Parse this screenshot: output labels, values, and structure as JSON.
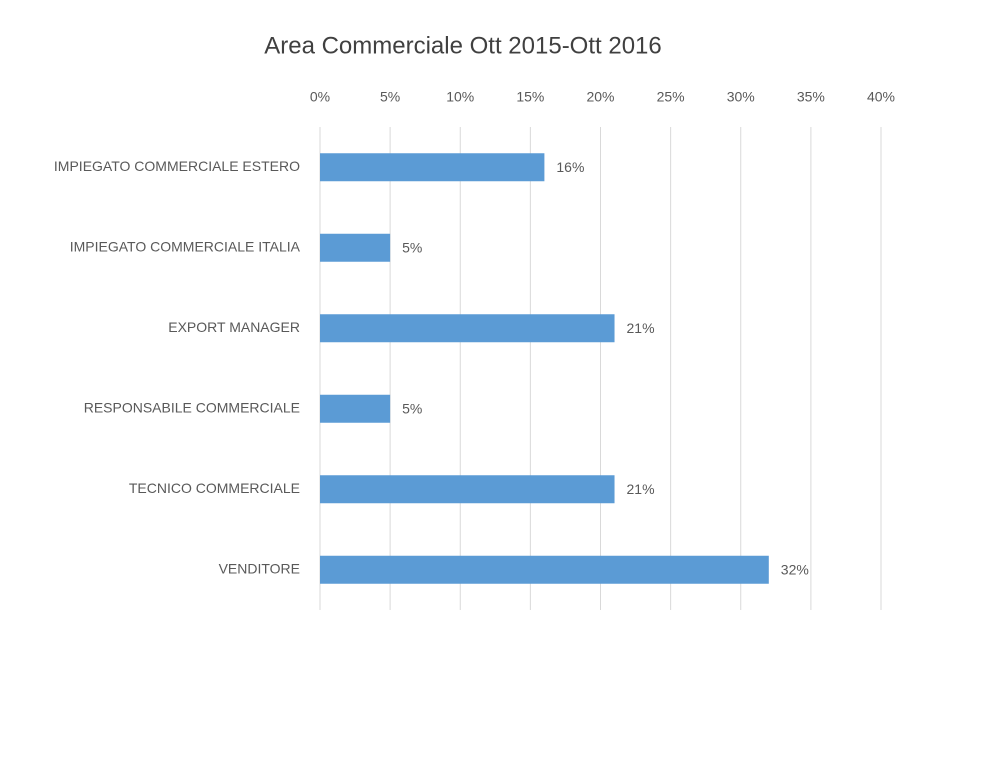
{
  "chart_data": {
    "type": "bar",
    "orientation": "horizontal",
    "title": "Area Commerciale Ott 2015-Ott 2016",
    "categories": [
      "IMPIEGATO COMMERCIALE ESTERO",
      "IMPIEGATO COMMERCIALE ITALIA",
      "EXPORT MANAGER",
      "RESPONSABILE COMMERCIALE",
      "TECNICO COMMERCIALE",
      "VENDITORE"
    ],
    "values": [
      16,
      5,
      21,
      5,
      21,
      32
    ],
    "value_labels": [
      "16%",
      "5%",
      "21%",
      "5%",
      "21%",
      "32%"
    ],
    "color": "#5b9bd5",
    "xlim": [
      0,
      40
    ],
    "xticks": [
      {
        "value": 0,
        "label": "0%"
      },
      {
        "value": 5,
        "label": "5%"
      },
      {
        "value": 10,
        "label": "10%"
      },
      {
        "value": 15,
        "label": "15%"
      },
      {
        "value": 20,
        "label": "20%"
      },
      {
        "value": 25,
        "label": "25%"
      },
      {
        "value": 30,
        "label": "30%"
      },
      {
        "value": 35,
        "label": "35%"
      },
      {
        "value": 40,
        "label": "40%"
      }
    ],
    "grid": true
  }
}
